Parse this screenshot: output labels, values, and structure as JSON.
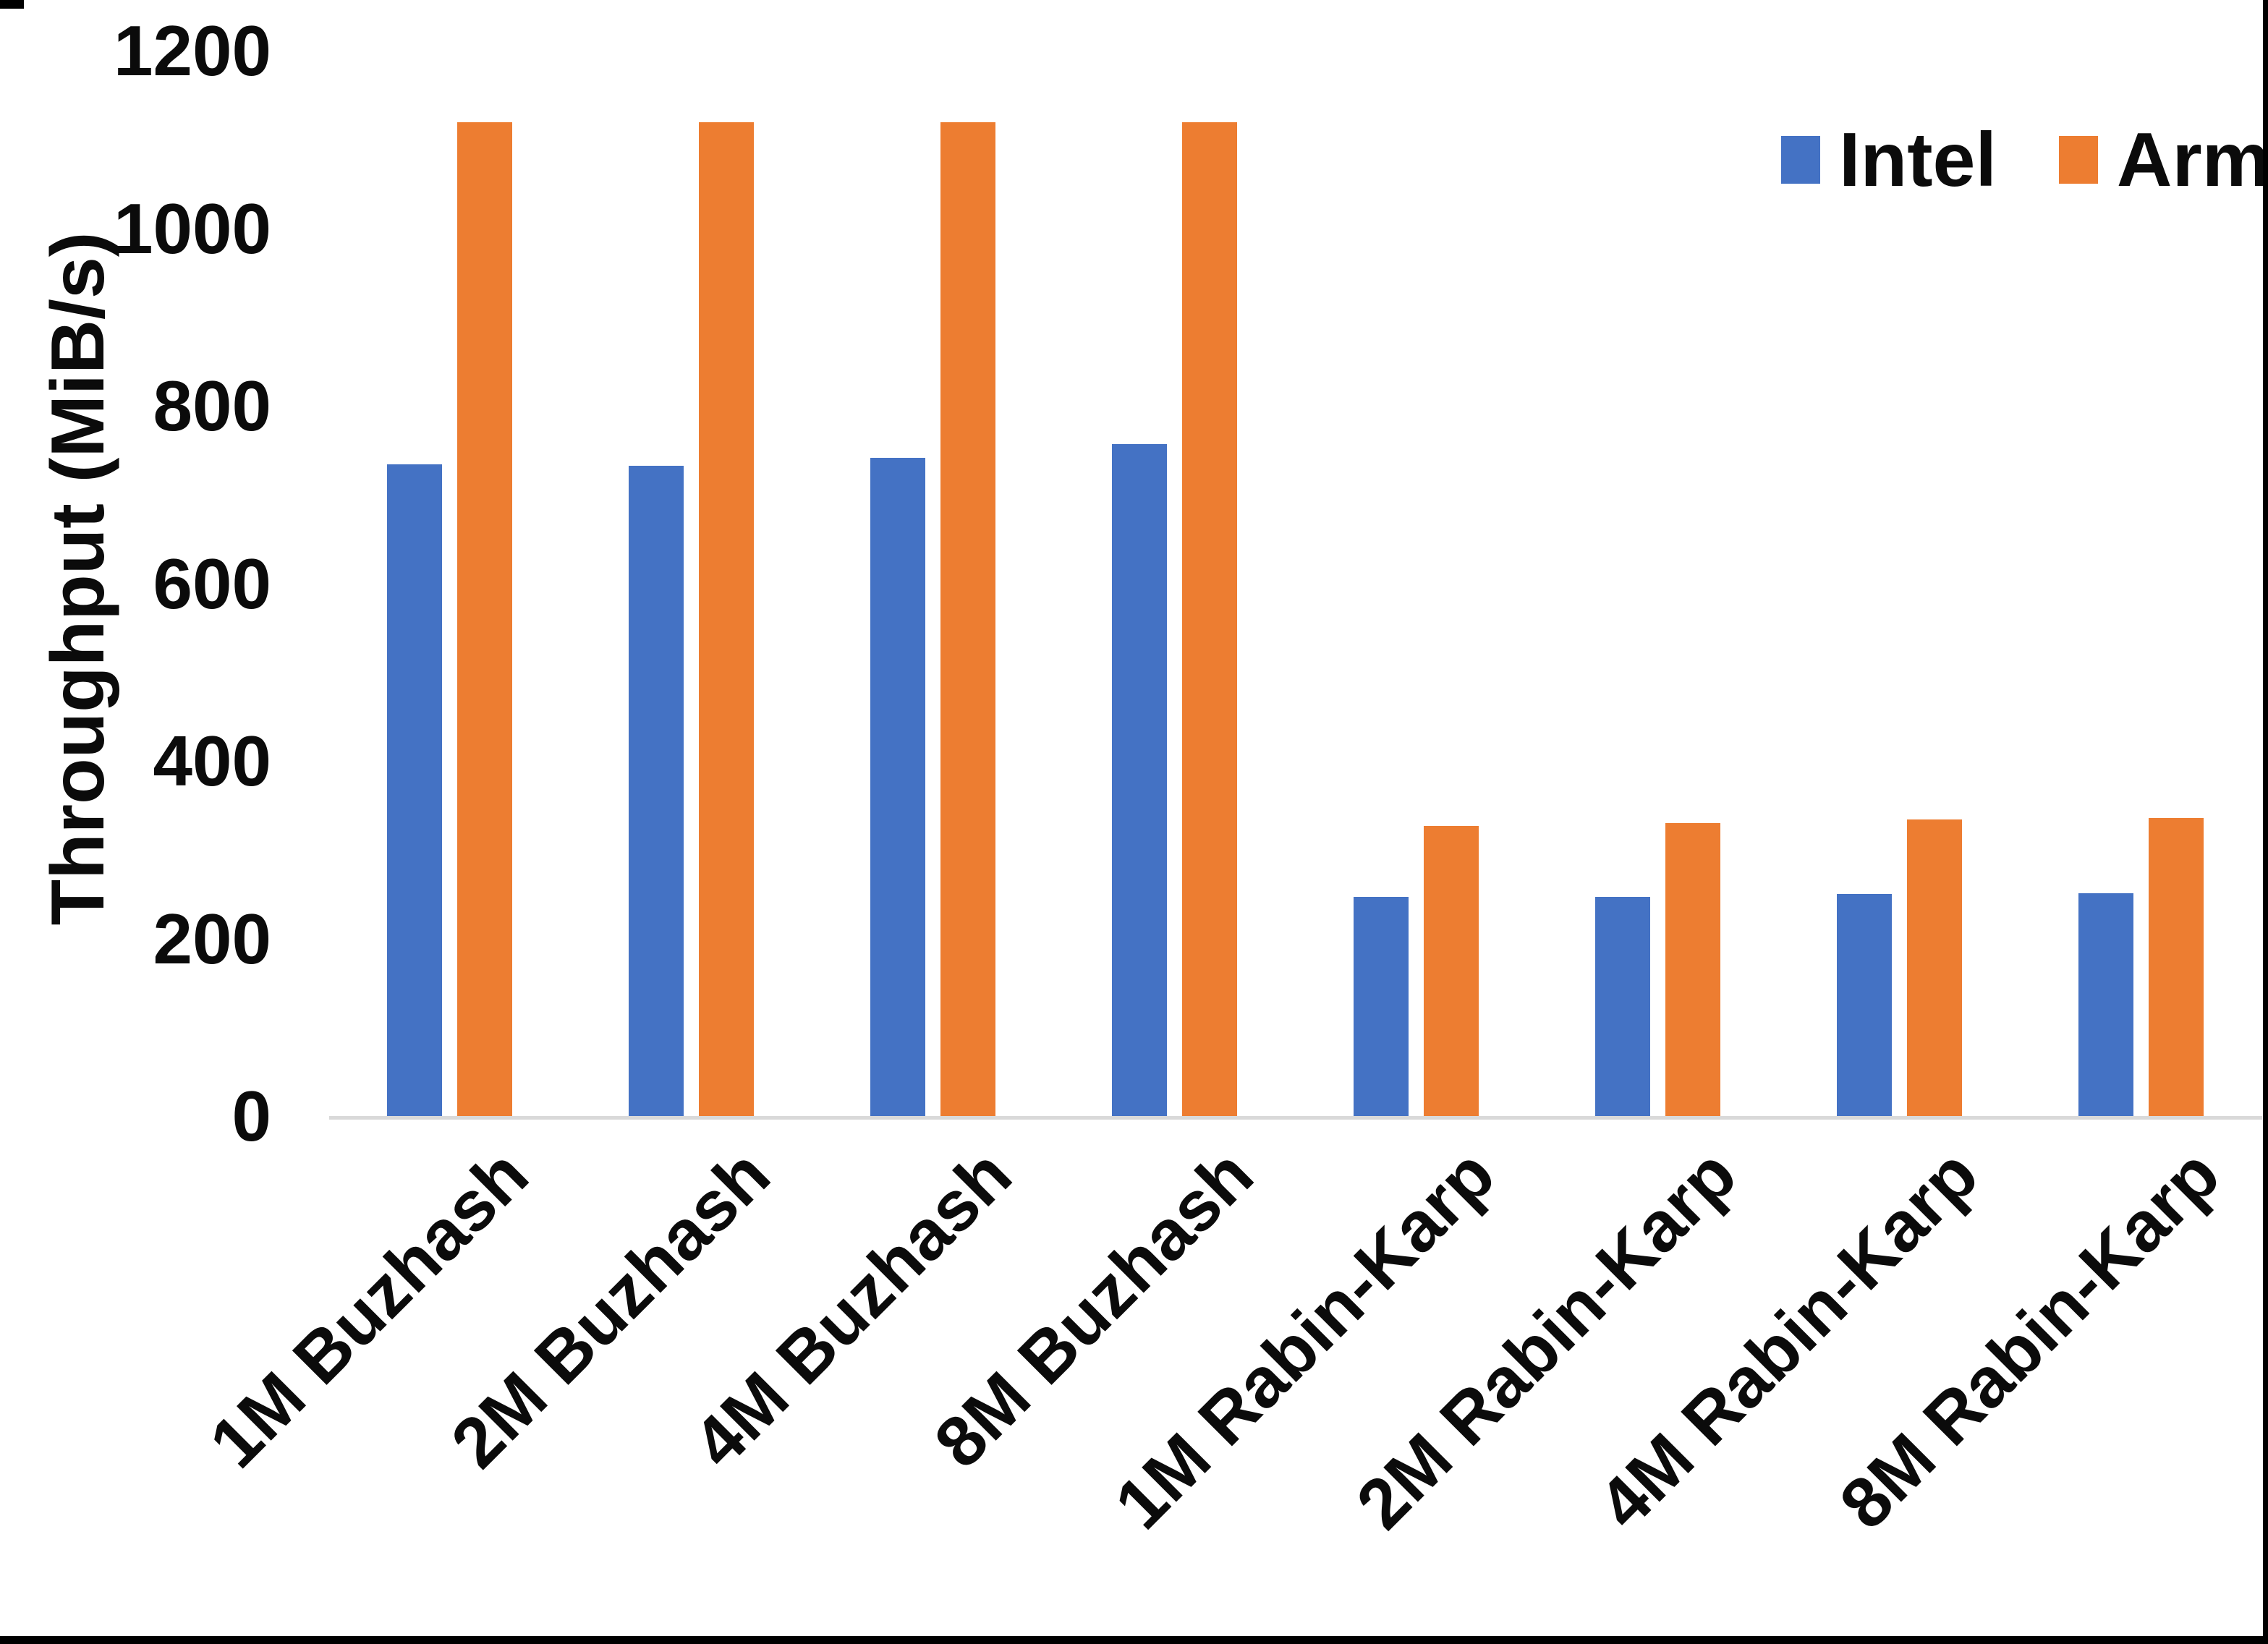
{
  "page": {
    "background": "#ffffff",
    "border_color": "#000000"
  },
  "chart_data": {
    "type": "bar",
    "categories": [
      "1M Buzhash",
      "2M Buzhash",
      "4M Buzhash",
      "8M Buzhash",
      "1M Rabin-Karp",
      "2M Rabin-Karp",
      "4M Rabin-Karp",
      "8M Rabin-Karp"
    ],
    "series": [
      {
        "name": "Intel",
        "color": "#4472C4",
        "values": [
          734,
          732,
          741,
          757,
          247,
          247,
          250,
          251
        ]
      },
      {
        "name": "Arm",
        "color": "#ED7D31",
        "values": [
          1119,
          1119,
          1119,
          1119,
          327,
          330,
          334,
          336
        ]
      }
    ],
    "title": "",
    "xlabel": "",
    "ylabel": "Throughput (MiB/s)",
    "ylim": [
      0,
      1200
    ],
    "yticks": [
      0,
      200,
      400,
      600,
      800,
      1000,
      1200
    ],
    "grid": false,
    "legend_position": "top-right",
    "axis_line_color": "#d9d9d9",
    "text_color": "#0b0b0b"
  }
}
